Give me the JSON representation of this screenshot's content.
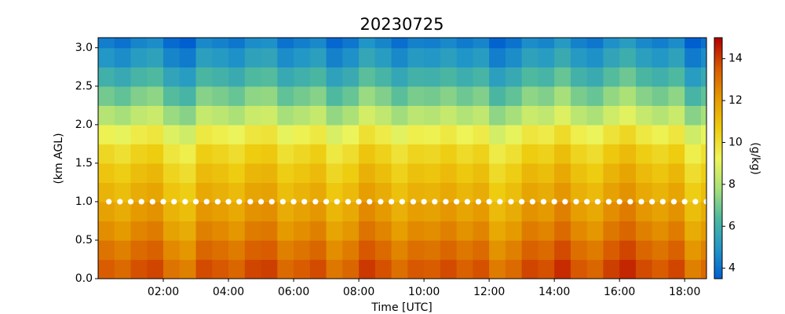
{
  "chart_data": {
    "type": "heatmap",
    "title": "20230725",
    "xlabel": "Time [UTC]",
    "ylabel": "(km AGL)",
    "colorbar_label": "(g/kg)",
    "xlim": [
      0,
      18.67
    ],
    "ylim": [
      0,
      3.13
    ],
    "xticks": [
      {
        "value": 2,
        "label": "02:00"
      },
      {
        "value": 4,
        "label": "04:00"
      },
      {
        "value": 6,
        "label": "06:00"
      },
      {
        "value": 8,
        "label": "08:00"
      },
      {
        "value": 10,
        "label": "10:00"
      },
      {
        "value": 12,
        "label": "12:00"
      },
      {
        "value": 14,
        "label": "14:00"
      },
      {
        "value": 16,
        "label": "16:00"
      },
      {
        "value": 18,
        "label": "18:00"
      }
    ],
    "yticks": [
      {
        "value": 0,
        "label": "0.0"
      },
      {
        "value": 0.5,
        "label": "0.5"
      },
      {
        "value": 1,
        "label": "1.0"
      },
      {
        "value": 1.5,
        "label": "1.5"
      },
      {
        "value": 2,
        "label": "2.0"
      },
      {
        "value": 2.5,
        "label": "2.5"
      },
      {
        "value": 3,
        "label": "3.0"
      }
    ],
    "clim": [
      3.5,
      15
    ],
    "cticks": [
      4,
      6,
      8,
      10,
      12,
      14
    ],
    "colormap": [
      "#005fd0",
      "#2196c8",
      "#4cb8a0",
      "#a8e07a",
      "#eef55a",
      "#eecc10",
      "#e59a00",
      "#d85a00",
      "#b40000"
    ],
    "x": [
      0.25,
      0.75,
      1.25,
      1.75,
      2.25,
      2.75,
      3.25,
      3.75,
      4.25,
      4.75,
      5.25,
      5.75,
      6.25,
      6.75,
      7.25,
      7.75,
      8.25,
      8.75,
      9.25,
      9.75,
      10.25,
      10.75,
      11.25,
      11.75,
      12.25,
      12.75,
      13.25,
      13.75,
      14.25,
      14.75,
      15.25,
      15.75,
      16.25,
      16.75,
      17.25,
      17.75,
      18.25,
      18.75
    ],
    "y": [
      0.125,
      0.375,
      0.625,
      0.875,
      1.125,
      1.375,
      1.625,
      1.875,
      2.125,
      2.375,
      2.625,
      2.875,
      3.125
    ],
    "values": [
      [
        13.5,
        13.2,
        13.7,
        13.9,
        13.0,
        12.7,
        13.8,
        13.6,
        13.3,
        13.9,
        14.0,
        13.2,
        13.5,
        13.8,
        12.9,
        13.3,
        14.1,
        13.7,
        13.1,
        13.6,
        13.5,
        13.8,
        13.4,
        13.7,
        12.8,
        13.2,
        13.9,
        13.7,
        14.3,
        13.6,
        13.3,
        14.0,
        14.4,
        13.8,
        13.5,
        13.9,
        12.7,
        13.2
      ],
      [
        13.0,
        12.7,
        13.2,
        13.4,
        12.5,
        12.2,
        13.3,
        13.1,
        12.8,
        13.4,
        13.5,
        12.7,
        13.0,
        13.3,
        12.4,
        12.8,
        13.6,
        13.2,
        12.6,
        13.1,
        13.0,
        13.3,
        12.9,
        13.2,
        12.3,
        12.7,
        13.4,
        13.2,
        13.8,
        13.1,
        12.8,
        13.5,
        13.9,
        13.3,
        13.0,
        13.4,
        12.2,
        12.7
      ],
      [
        12.4,
        12.1,
        12.6,
        12.8,
        11.9,
        11.6,
        12.7,
        12.5,
        12.2,
        12.8,
        12.9,
        12.1,
        12.4,
        12.7,
        11.8,
        12.2,
        13.0,
        12.6,
        12.0,
        12.5,
        12.4,
        12.7,
        12.3,
        12.6,
        11.7,
        12.1,
        12.8,
        12.6,
        13.2,
        12.5,
        12.2,
        12.9,
        13.3,
        12.7,
        12.4,
        12.8,
        11.6,
        12.1
      ],
      [
        11.9,
        11.6,
        12.1,
        12.3,
        11.4,
        11.1,
        12.2,
        12.0,
        11.7,
        12.3,
        12.4,
        11.6,
        11.9,
        12.2,
        11.3,
        11.7,
        12.5,
        12.1,
        11.5,
        12.0,
        11.9,
        12.2,
        11.8,
        12.1,
        11.2,
        11.6,
        12.3,
        12.1,
        12.7,
        12.0,
        11.7,
        12.4,
        12.8,
        12.2,
        11.9,
        12.3,
        11.1,
        11.6
      ],
      [
        11.4,
        11.1,
        11.6,
        11.8,
        10.9,
        10.6,
        11.7,
        11.5,
        11.2,
        11.8,
        11.9,
        11.1,
        11.4,
        11.7,
        10.8,
        11.2,
        12.0,
        11.6,
        11.0,
        11.5,
        11.4,
        11.7,
        11.3,
        11.6,
        10.7,
        11.1,
        11.8,
        11.6,
        12.2,
        11.5,
        11.2,
        11.9,
        12.3,
        11.7,
        11.4,
        11.8,
        10.6,
        11.1
      ],
      [
        10.9,
        10.6,
        11.1,
        11.3,
        10.4,
        10.1,
        11.2,
        11.0,
        10.7,
        11.3,
        11.4,
        10.6,
        10.9,
        11.2,
        10.3,
        10.7,
        11.5,
        11.1,
        10.5,
        11.0,
        10.9,
        11.2,
        10.8,
        11.1,
        10.2,
        10.6,
        11.3,
        11.1,
        11.7,
        11.0,
        10.7,
        11.4,
        11.8,
        11.2,
        10.9,
        11.3,
        10.1,
        10.6
      ],
      [
        10.3,
        10.0,
        10.5,
        10.7,
        9.8,
        9.5,
        10.6,
        10.4,
        10.1,
        10.7,
        10.8,
        10.0,
        10.3,
        10.6,
        9.7,
        10.1,
        10.9,
        10.5,
        9.9,
        10.4,
        10.3,
        10.6,
        10.2,
        10.5,
        9.6,
        10.0,
        10.7,
        10.5,
        11.1,
        10.4,
        10.1,
        10.8,
        11.2,
        10.6,
        10.3,
        10.7,
        9.5,
        10.0
      ],
      [
        9.4,
        9.1,
        9.6,
        9.8,
        8.9,
        8.6,
        9.7,
        9.5,
        9.2,
        9.8,
        9.9,
        9.1,
        9.4,
        9.7,
        8.8,
        9.2,
        10.0,
        9.6,
        9.0,
        9.5,
        9.4,
        9.7,
        9.3,
        9.6,
        8.7,
        9.1,
        9.8,
        9.6,
        10.2,
        9.5,
        9.2,
        9.9,
        10.3,
        9.7,
        9.4,
        9.8,
        8.6,
        9.1
      ],
      [
        8.1,
        7.8,
        8.3,
        8.5,
        7.6,
        7.3,
        8.4,
        8.2,
        7.9,
        8.5,
        8.6,
        7.8,
        8.1,
        8.4,
        7.5,
        7.9,
        8.7,
        8.3,
        7.7,
        8.2,
        8.1,
        8.4,
        8.0,
        8.3,
        7.4,
        7.8,
        8.5,
        8.3,
        8.9,
        8.2,
        7.9,
        8.6,
        9.0,
        8.4,
        8.1,
        8.5,
        7.3,
        7.8
      ],
      [
        7.0,
        6.7,
        7.2,
        7.4,
        6.5,
        6.2,
        7.3,
        7.1,
        6.8,
        7.4,
        7.5,
        6.7,
        7.0,
        7.3,
        6.4,
        6.8,
        7.6,
        7.2,
        6.6,
        7.1,
        7.0,
        7.3,
        6.9,
        7.2,
        6.3,
        6.7,
        7.4,
        7.2,
        7.8,
        7.1,
        6.8,
        7.5,
        7.9,
        7.3,
        7.0,
        7.4,
        6.2,
        6.7
      ],
      [
        6.0,
        5.7,
        6.2,
        6.4,
        5.5,
        5.2,
        6.3,
        6.1,
        5.8,
        6.4,
        6.5,
        5.7,
        6.0,
        6.3,
        5.4,
        5.8,
        6.6,
        6.2,
        5.6,
        6.1,
        6.0,
        6.3,
        5.9,
        6.2,
        5.3,
        5.7,
        6.4,
        6.2,
        6.8,
        6.1,
        5.8,
        6.5,
        6.9,
        6.3,
        6.0,
        6.4,
        5.2,
        5.7
      ],
      [
        5.0,
        4.7,
        5.2,
        5.4,
        4.5,
        4.2,
        5.3,
        5.1,
        4.8,
        5.4,
        5.5,
        4.7,
        5.0,
        5.3,
        4.4,
        4.8,
        5.6,
        5.2,
        4.6,
        5.1,
        5.0,
        5.3,
        4.9,
        5.2,
        4.3,
        4.7,
        5.4,
        5.2,
        5.8,
        5.1,
        4.8,
        5.5,
        5.9,
        5.3,
        5.0,
        5.4,
        4.2,
        4.7
      ],
      [
        4.3,
        4.0,
        4.5,
        4.7,
        3.8,
        3.5,
        4.6,
        4.4,
        4.1,
        4.7,
        4.8,
        4.0,
        4.3,
        4.6,
        3.7,
        4.1,
        4.9,
        4.5,
        3.9,
        4.4,
        4.3,
        4.6,
        4.2,
        4.5,
        3.6,
        4.0,
        4.7,
        4.5,
        5.1,
        4.4,
        4.1,
        4.8,
        5.2,
        4.6,
        4.3,
        4.7,
        3.5,
        4.0
      ]
    ],
    "markers": {
      "color": "#ffffff",
      "x": [
        0.33,
        0.67,
        1,
        1.33,
        1.67,
        2,
        2.33,
        2.67,
        3,
        3.33,
        3.67,
        4,
        4.33,
        4.67,
        5,
        5.33,
        5.67,
        6,
        6.33,
        6.67,
        7,
        7.33,
        7.67,
        8,
        8.33,
        8.67,
        9,
        9.33,
        9.67,
        10,
        10.33,
        10.67,
        11,
        11.33,
        11.67,
        12,
        12.33,
        12.67,
        13,
        13.33,
        13.67,
        14,
        14.33,
        14.67,
        15,
        15.33,
        15.67,
        16,
        16.33,
        16.67,
        17,
        17.33,
        17.67,
        18,
        18.33,
        18.67
      ],
      "values": [
        1,
        1,
        1,
        1,
        1,
        1,
        1,
        1,
        1,
        1,
        1,
        1,
        1,
        1,
        1,
        1,
        1,
        1,
        1,
        1,
        1,
        1,
        1,
        1,
        1,
        1,
        1,
        1,
        1,
        1,
        1,
        1,
        1,
        1,
        1,
        1,
        1,
        1,
        1,
        1,
        1,
        1,
        1,
        1,
        1,
        1,
        1,
        1,
        1,
        1,
        1,
        1,
        1,
        1,
        1,
        1
      ]
    }
  }
}
